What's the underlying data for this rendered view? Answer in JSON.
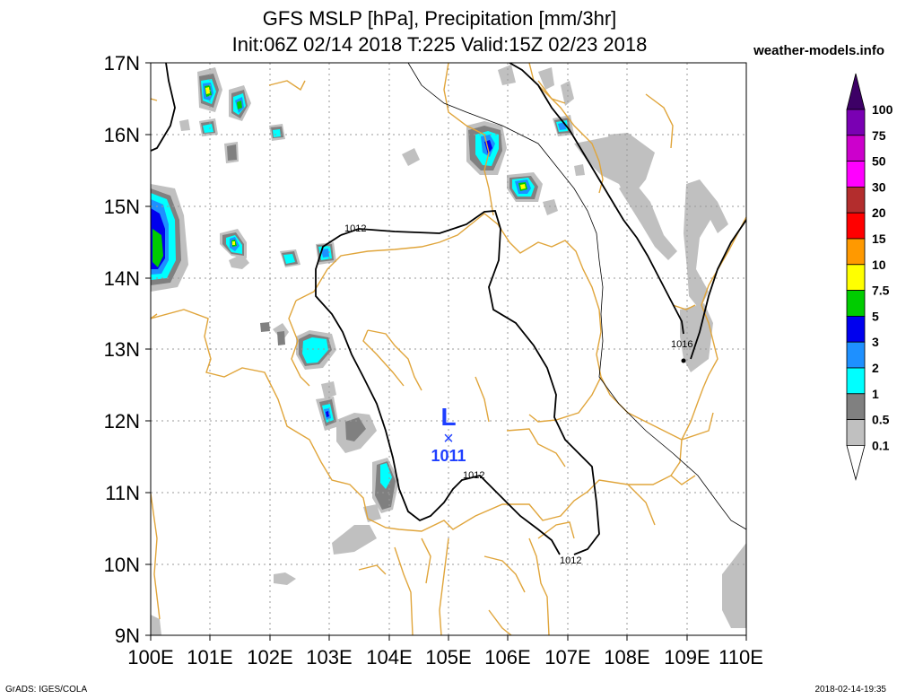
{
  "header": {
    "title_line1": "GFS MSLP [hPa], Precipitation [mm/3hr]",
    "title_line2": "Init:06Z 02/14 2018 T:225 Valid:15Z 02/23 2018",
    "site": "weather-models.info"
  },
  "footer": {
    "credit": "GrADS: IGES/COLA",
    "timestamp": "2018-02-14-19:35"
  },
  "map": {
    "lat_labels": [
      "17N",
      "16N",
      "15N",
      "14N",
      "13N",
      "12N",
      "11N",
      "10N",
      "9N"
    ],
    "lon_labels": [
      "100E",
      "101E",
      "102E",
      "103E",
      "104E",
      "105E",
      "106E",
      "107E",
      "108E",
      "109E",
      "110E"
    ],
    "isobar_labels": [
      "1012",
      "1012",
      "1012",
      "1016"
    ],
    "low_center": {
      "symbol": "L",
      "marker": "×",
      "value": "1011"
    },
    "colors": {
      "coast": "#e0a53b",
      "isobar": "#000000",
      "low": "#1f3fff",
      "grid": "#9a9a9a"
    }
  },
  "legend": {
    "labels": [
      "100",
      "75",
      "50",
      "30",
      "20",
      "15",
      "10",
      "7.5",
      "5",
      "3",
      "2",
      "1",
      "0.5",
      "0.1"
    ],
    "colors": [
      "#3d0066",
      "#7a00b3",
      "#cc00cc",
      "#ff00ff",
      "#b32d2d",
      "#ff0000",
      "#ff9900",
      "#ffff00",
      "#00cc00",
      "#0000ee",
      "#1e90ff",
      "#00ffff",
      "#808080",
      "#c0c0c0"
    ]
  }
}
